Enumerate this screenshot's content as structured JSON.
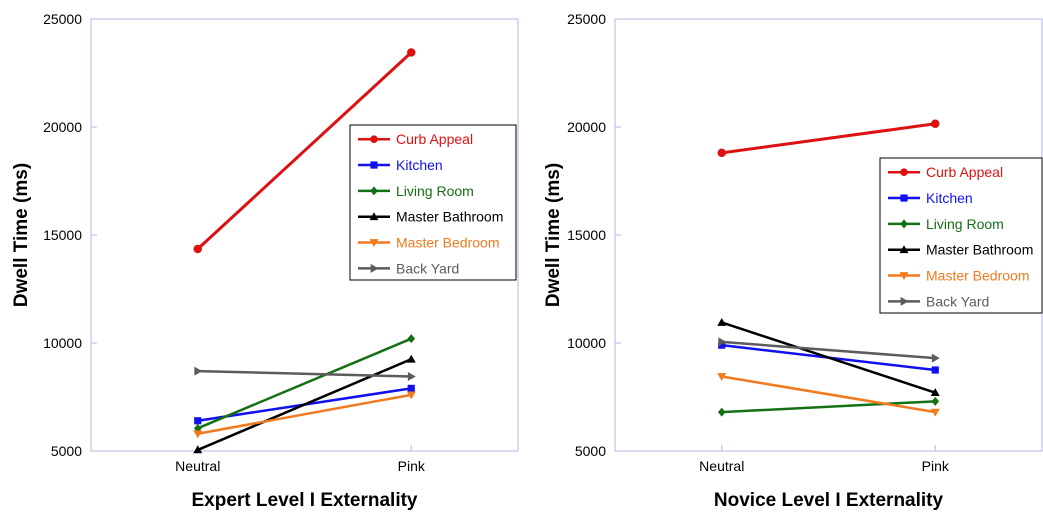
{
  "chart_data": [
    {
      "type": "line",
      "title": "",
      "xlabel": "Expert Level I Externality",
      "ylabel": "Dwell Time (ms)",
      "categories": [
        "Neutral",
        "Pink"
      ],
      "ylim": [
        5000,
        25000
      ],
      "yticks": [
        5000,
        10000,
        15000,
        20000,
        25000
      ],
      "grid": false,
      "legend_position": "upper-right",
      "series": [
        {
          "name": "Curb Appeal",
          "values": [
            14350,
            23450
          ],
          "color": "#dd1111",
          "marker": "circle"
        },
        {
          "name": "Kitchen",
          "values": [
            6400,
            7900
          ],
          "color": "#1111ee",
          "marker": "square"
        },
        {
          "name": "Living Room",
          "values": [
            6050,
            10200
          ],
          "color": "#157015",
          "marker": "diamond"
        },
        {
          "name": "Master Bathroom",
          "values": [
            5050,
            9250
          ],
          "color": "#000000",
          "marker": "triangle-up"
        },
        {
          "name": "Master Bedroom",
          "values": [
            5800,
            7600
          ],
          "color": "#f07a1e",
          "marker": "triangle-down"
        },
        {
          "name": "Back Yard",
          "values": [
            8700,
            8450
          ],
          "color": "#5c5c5c",
          "marker": "triangle-right"
        }
      ]
    },
    {
      "type": "line",
      "title": "",
      "xlabel": "Novice Level I Externality",
      "ylabel": "Dwell Time (ms)",
      "categories": [
        "Neutral",
        "Pink"
      ],
      "ylim": [
        5000,
        25000
      ],
      "yticks": [
        5000,
        10000,
        15000,
        20000,
        25000
      ],
      "grid": false,
      "legend_position": "right",
      "series": [
        {
          "name": "Curb Appeal",
          "values": [
            18800,
            20150
          ],
          "color": "#dd1111",
          "marker": "circle"
        },
        {
          "name": "Kitchen",
          "values": [
            9900,
            8750
          ],
          "color": "#1111ee",
          "marker": "square"
        },
        {
          "name": "Living Room",
          "values": [
            6800,
            7300
          ],
          "color": "#157015",
          "marker": "diamond"
        },
        {
          "name": "Master Bathroom",
          "values": [
            10950,
            7700
          ],
          "color": "#000000",
          "marker": "triangle-up"
        },
        {
          "name": "Master Bedroom",
          "values": [
            8450,
            6800
          ],
          "color": "#f07a1e",
          "marker": "triangle-down"
        },
        {
          "name": "Back Yard",
          "values": [
            10050,
            9300
          ],
          "color": "#5c5c5c",
          "marker": "triangle-right"
        }
      ]
    }
  ]
}
